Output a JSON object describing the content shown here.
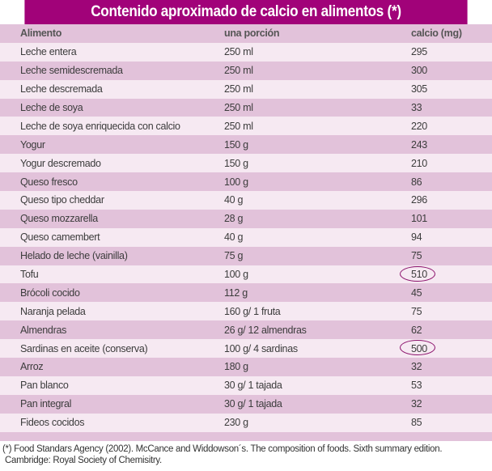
{
  "title": "Contenido aproximado de calcio en alimentos (*)",
  "columns": [
    "Alimento",
    "una porción",
    "calcio (mg)"
  ],
  "rows": [
    {
      "food": "Leche entera",
      "portion": "250 ml",
      "calcium": "295",
      "highlight": false
    },
    {
      "food": "Leche semidescremada",
      "portion": "250 ml",
      "calcium": "300",
      "highlight": false
    },
    {
      "food": "Leche descremada",
      "portion": "250 ml",
      "calcium": "305",
      "highlight": false
    },
    {
      "food": "Leche de soya",
      "portion": "250 ml",
      "calcium": "33",
      "highlight": false
    },
    {
      "food": "Leche de soya enriquecida con calcio",
      "portion": "250 ml",
      "calcium": "220",
      "highlight": false
    },
    {
      "food": "Yogur",
      "portion": "150 g",
      "calcium": "243",
      "highlight": false
    },
    {
      "food": "Yogur descremado",
      "portion": "150 g",
      "calcium": "210",
      "highlight": false
    },
    {
      "food": "Queso fresco",
      "portion": "100 g",
      "calcium": "86",
      "highlight": false
    },
    {
      "food": "Queso tipo cheddar",
      "portion": "40 g",
      "calcium": "296",
      "highlight": false
    },
    {
      "food": "Queso mozzarella",
      "portion": "28 g",
      "calcium": "101",
      "highlight": false
    },
    {
      "food": "Queso camembert",
      "portion": "40 g",
      "calcium": "94",
      "highlight": false
    },
    {
      "food": "Helado de leche (vainilla)",
      "portion": "75 g",
      "calcium": "75",
      "highlight": false
    },
    {
      "food": "Tofu",
      "portion": "100 g",
      "calcium": "510",
      "highlight": true
    },
    {
      "food": "Brócoli cocido",
      "portion": "112 g",
      "calcium": "45",
      "highlight": false
    },
    {
      "food": "Naranja pelada",
      "portion": "160 g/ 1 fruta",
      "calcium": "75",
      "highlight": false
    },
    {
      "food": "Almendras",
      "portion": "26 g/ 12 almendras",
      "calcium": "62",
      "highlight": false
    },
    {
      "food": "Sardinas en aceite (conserva)",
      "portion": "100 g/ 4 sardinas",
      "calcium": "500",
      "highlight": true
    },
    {
      "food": "Arroz",
      "portion": "180 g",
      "calcium": "32",
      "highlight": false
    },
    {
      "food": "Pan blanco",
      "portion": "30 g/ 1 tajada",
      "calcium": "53",
      "highlight": false
    },
    {
      "food": "Pan integral",
      "portion": "30 g/ 1 tajada",
      "calcium": "32",
      "highlight": false
    },
    {
      "food": "Fideos cocidos",
      "portion": "230 g",
      "calcium": "85",
      "highlight": false
    }
  ],
  "footnote": [
    "(*) Food Standars Agency (2002). McCance and Widdowson´s. The composition of foods. Sixth summary edition.",
    "Cambridge: Royal Society of Chemisitry."
  ],
  "colors": {
    "title_bg": "#a10279",
    "row_dark": "#e2c2da",
    "row_light": "#f6e9f2",
    "highlight_circle": "#8a0f6a"
  }
}
